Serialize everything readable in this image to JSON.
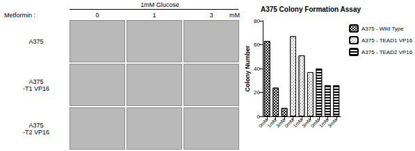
{
  "image_panel": {
    "title": "1mM Glucose",
    "column_header": "Metformin :",
    "columns": [
      "0",
      "1",
      "3"
    ],
    "column_unit": "mM",
    "rows": [
      [
        "A375"
      ],
      [
        "A375",
        "-T1 VP16"
      ],
      [
        "A375",
        "-T2 VP16"
      ]
    ]
  },
  "chart_data": {
    "type": "bar",
    "title": "A375 Colony Formation Assay",
    "y_label": "Colony Number",
    "categories": [
      "0mM",
      "1mM",
      "3mM",
      "0mM",
      "1mM",
      "3mM",
      "0mM",
      "1mM",
      "3mM"
    ],
    "series": [
      {
        "name": "A375 - Wild Type",
        "color": "#000000",
        "values": [
          63,
          24,
          7,
          null,
          null,
          null,
          null,
          null,
          null
        ]
      },
      {
        "name": "A375 - TEAD1 VP16",
        "color": "#000000",
        "values": [
          null,
          null,
          null,
          67,
          51,
          37,
          null,
          null,
          null
        ]
      },
      {
        "name": "A375 - TEAD2 VP16",
        "color": "#000000",
        "values": [
          null,
          null,
          null,
          null,
          null,
          null,
          40,
          26,
          26
        ]
      }
    ],
    "ylim": [
      0,
      80
    ],
    "yticks": [
      0,
      20,
      40,
      60,
      80
    ],
    "legend": "right"
  }
}
